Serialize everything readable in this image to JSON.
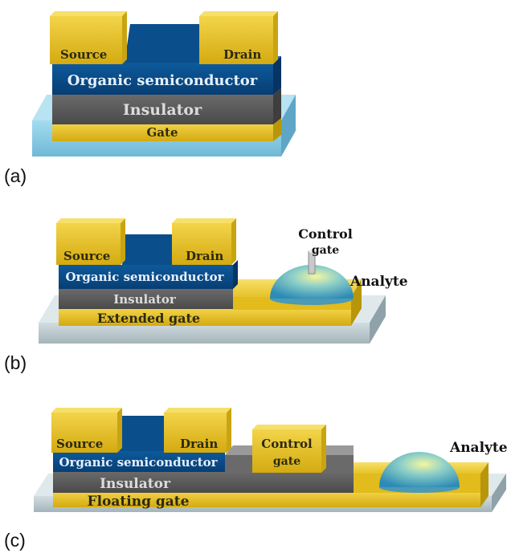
{
  "panel_a": {
    "caption": "(a)",
    "source": "Source",
    "drain": "Drain",
    "semiconductor": "Organic semiconductor",
    "insulator": "Insulator",
    "gate": "Gate"
  },
  "panel_b": {
    "caption": "(b)",
    "source": "Source",
    "drain": "Drain",
    "semiconductor": "Organic semiconductor",
    "insulator": "Insulator",
    "gate": "Extended gate",
    "control_gate_line1": "Control",
    "control_gate_line2": "gate",
    "analyte": "Analyte"
  },
  "panel_c": {
    "caption": "(c)",
    "source": "Source",
    "drain": "Drain",
    "semiconductor": "Organic semiconductor",
    "insulator": "Insulator",
    "gate": "Floating gate",
    "control_gate_line1": "Control",
    "control_gate_line2": "gate",
    "analyte": "Analyte"
  },
  "colors": {
    "gold": "#e8c21e",
    "gold_dark": "#b8960a",
    "blue": "#0a4f8e",
    "blue_top": "#2a6cb0",
    "insulator": "#5a5a5a",
    "insulator_top": "#8a8a8a",
    "substrate_blue": "#8fcfe6",
    "substrate_gray": "#b7c6cc"
  }
}
